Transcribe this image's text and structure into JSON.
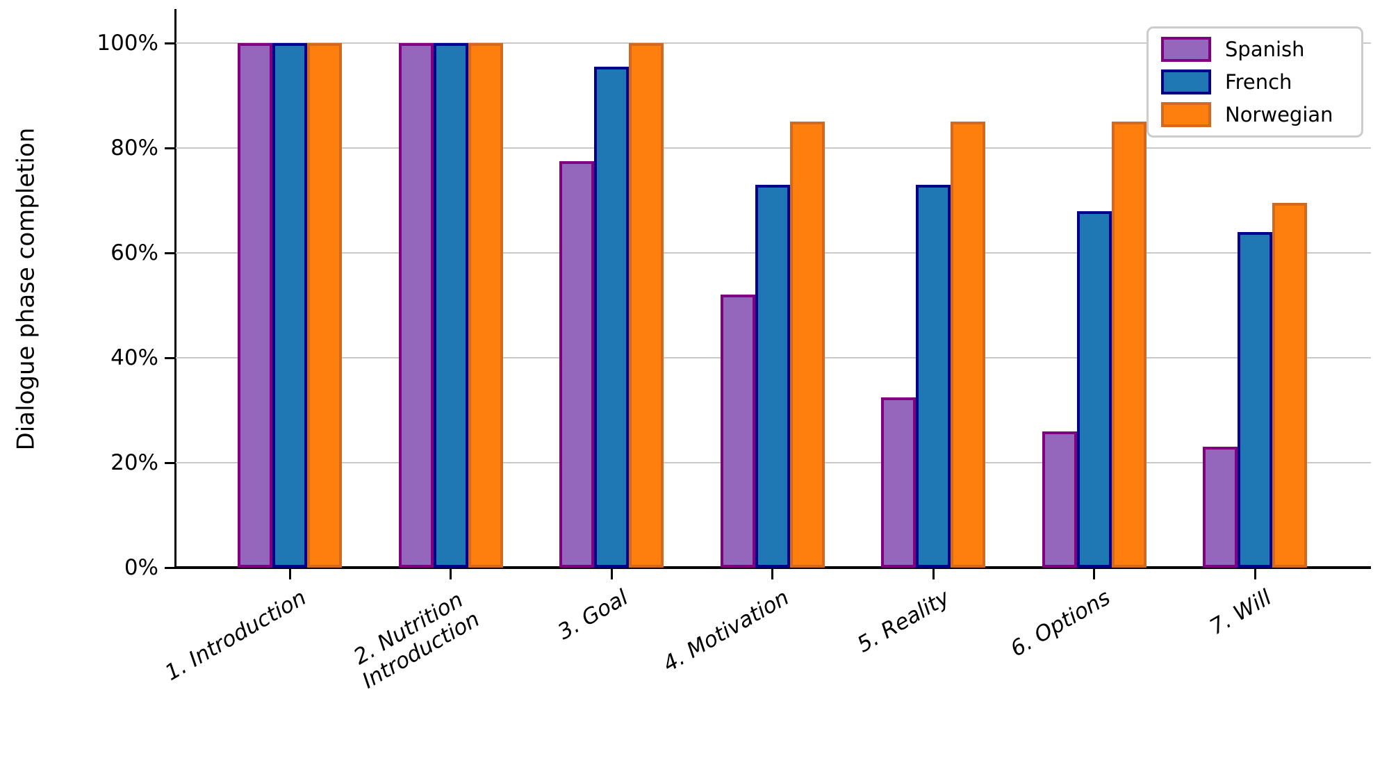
{
  "chart_data": {
    "type": "bar",
    "title": "",
    "ylabel": "Dialogue phase completion",
    "xlabel": "",
    "categories": [
      "1. Introduction",
      "2. Nutrition\nIntroduction",
      "3. Goal",
      "4. Motivation",
      "5. Reality",
      "6. Options",
      "7. Will"
    ],
    "series": [
      {
        "name": "Spanish",
        "fill": "#9467bd",
        "edge": "#800080",
        "values": [
          100,
          100,
          77.5,
          52,
          32.5,
          26,
          23
        ]
      },
      {
        "name": "French",
        "fill": "#1f77b4",
        "edge": "#00008b",
        "values": [
          100,
          100,
          95.5,
          73,
          73,
          68,
          64
        ]
      },
      {
        "name": "Norwegian",
        "fill": "#ff7f0e",
        "edge": "#d2691e",
        "values": [
          100,
          100,
          100,
          85,
          85,
          85,
          69.5
        ]
      }
    ],
    "ytick_values": [
      0,
      20,
      40,
      60,
      80,
      100
    ],
    "ytick_labels": [
      "0%",
      "20%",
      "40%",
      "60%",
      "80%",
      "100%"
    ],
    "ylim": [
      0,
      100
    ],
    "grid": true,
    "grid_color": "#c9c9c9",
    "axis_color": "#000000",
    "legend_position": "upper right",
    "legend_labels": [
      "Spanish",
      "French",
      "Norwegian"
    ]
  }
}
